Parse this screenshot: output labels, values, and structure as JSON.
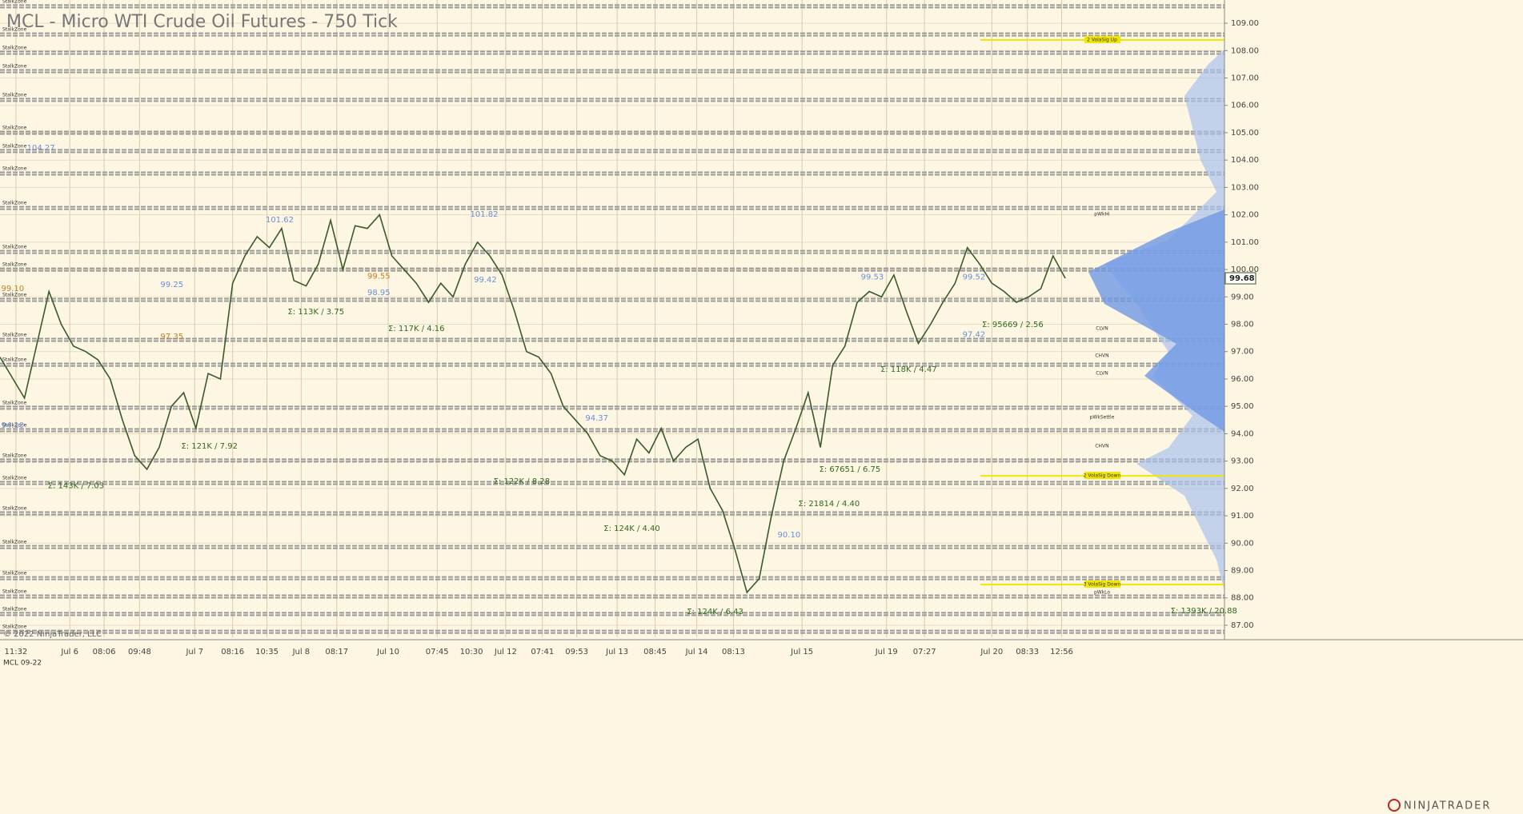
{
  "chart_data": {
    "type": "line",
    "title": "MCL - Micro WTI Crude Oil Futures - 750 Tick",
    "instrument": "MCL 09-22",
    "copyright": "© 2022 NinjaTrader, LLC",
    "brand": "NINJATRADER",
    "color": "#3a5a2a",
    "grid": true,
    "xlim": [
      0,
      100
    ],
    "ylim": [
      86.56,
      109.85
    ],
    "xticks": [
      {
        "value": 1.3,
        "label": "11:32"
      },
      {
        "value": 5.7,
        "label": "Jul 6"
      },
      {
        "value": 8.5,
        "label": "08:06"
      },
      {
        "value": 11.4,
        "label": "09:48"
      },
      {
        "value": 15.9,
        "label": "Jul 7"
      },
      {
        "value": 19,
        "label": "08:16"
      },
      {
        "value": 21.8,
        "label": "10:35"
      },
      {
        "value": 24.6,
        "label": "Jul 8"
      },
      {
        "value": 27.5,
        "label": "08:17"
      },
      {
        "value": 31.7,
        "label": "Jul 10"
      },
      {
        "value": 35.7,
        "label": "07:45"
      },
      {
        "value": 38.5,
        "label": "10:30"
      },
      {
        "value": 41.3,
        "label": "Jul 12"
      },
      {
        "value": 44.3,
        "label": "07:41"
      },
      {
        "value": 47.1,
        "label": "09:53"
      },
      {
        "value": 50.4,
        "label": "Jul 13"
      },
      {
        "value": 53.5,
        "label": "08:45"
      },
      {
        "value": 56.9,
        "label": "Jul 14"
      },
      {
        "value": 59.9,
        "label": "08:13"
      },
      {
        "value": 65.5,
        "label": "Jul 15"
      },
      {
        "value": 72.4,
        "label": "Jul 19"
      },
      {
        "value": 75.5,
        "label": "07:27"
      },
      {
        "value": 81,
        "label": "Jul 20"
      },
      {
        "value": 83.9,
        "label": "08:33"
      },
      {
        "value": 86.7,
        "label": "12:56"
      }
    ],
    "yticks": [
      {
        "value": 87,
        "label": "87.00"
      },
      {
        "value": 88,
        "label": "88.00"
      },
      {
        "value": 89,
        "label": "89.00"
      },
      {
        "value": 90,
        "label": "90.00"
      },
      {
        "value": 91,
        "label": "91.00"
      },
      {
        "value": 92,
        "label": "92.00"
      },
      {
        "value": 93,
        "label": "93.00"
      },
      {
        "value": 94,
        "label": "94.00"
      },
      {
        "value": 95,
        "label": "95.00"
      },
      {
        "value": 96,
        "label": "96.00"
      },
      {
        "value": 97,
        "label": "97.00"
      },
      {
        "value": 98,
        "label": "98.00"
      },
      {
        "value": 99,
        "label": "99.00"
      },
      {
        "value": 100,
        "label": "100.00"
      },
      {
        "value": 101,
        "label": "101.00"
      },
      {
        "value": 102,
        "label": "102.00"
      },
      {
        "value": 103,
        "label": "103.00"
      },
      {
        "value": 104,
        "label": "104.00"
      },
      {
        "value": 105,
        "label": "105.00"
      },
      {
        "value": 106,
        "label": "106.00"
      },
      {
        "value": 107,
        "label": "107.00"
      },
      {
        "value": 108,
        "label": "108.00"
      },
      {
        "value": 109,
        "label": "109.00"
      }
    ],
    "x": [
      0,
      2,
      4,
      5,
      6,
      7,
      8,
      9,
      10,
      11,
      12,
      13,
      14,
      15,
      16,
      17,
      18,
      19,
      20,
      21,
      22,
      23,
      24,
      25,
      26,
      27,
      28,
      29,
      30,
      31,
      32,
      33,
      34,
      35,
      36,
      37,
      38,
      39,
      40,
      41,
      42,
      43,
      44,
      45,
      46,
      47,
      48,
      49,
      50,
      51,
      52,
      53,
      54,
      55,
      56,
      57,
      58,
      59,
      60,
      61,
      62,
      63,
      64,
      65,
      66,
      67,
      68,
      69,
      70,
      71,
      72,
      73,
      74,
      75,
      76,
      77,
      78,
      79,
      80,
      81,
      82,
      83,
      84,
      85,
      86,
      87
    ],
    "values": [
      96.8,
      95.3,
      99.2,
      98.0,
      97.2,
      97.0,
      96.7,
      96.0,
      94.5,
      93.2,
      92.7,
      93.5,
      95.0,
      95.5,
      94.2,
      96.2,
      96.0,
      99.5,
      100.5,
      101.2,
      100.8,
      101.5,
      99.6,
      99.4,
      100.2,
      101.8,
      100.0,
      101.6,
      101.5,
      102.0,
      100.5,
      100.0,
      99.5,
      98.8,
      99.5,
      99.0,
      100.2,
      101.0,
      100.5,
      99.8,
      98.5,
      97.0,
      96.8,
      96.2,
      95.0,
      94.5,
      94.0,
      93.2,
      93.0,
      92.5,
      93.8,
      93.3,
      94.2,
      93.0,
      93.5,
      93.8,
      92.0,
      91.2,
      89.8,
      88.2,
      88.7,
      91.0,
      93.0,
      94.2,
      95.5,
      93.5,
      96.5,
      97.2,
      98.8,
      99.2,
      99.0,
      99.8,
      98.5,
      97.3,
      98.0,
      98.8,
      99.5,
      100.8,
      100.2,
      99.5,
      99.2,
      98.8,
      99.0,
      99.3,
      100.5,
      99.68
    ],
    "last_price": {
      "value": 99.68,
      "label": "99.68"
    },
    "zone_label": "StalkZone",
    "zones": [
      109.62,
      108.59,
      107.92,
      107.25,
      106.2,
      105.0,
      104.33,
      103.51,
      102.25,
      100.64,
      100.0,
      98.89,
      97.43,
      96.52,
      94.95,
      94.13,
      93.02,
      92.2,
      91.09,
      89.86,
      88.72,
      88.05,
      87.41,
      86.76
    ],
    "annotations": [
      {
        "text": "Σ: 143K / 7.03",
        "x": 3.9,
        "y": 92.1,
        "color": "#2e6b1e"
      },
      {
        "text": "Σ: 121K / 7.92",
        "x": 14.8,
        "y": 93.55,
        "color": "#2e6b1e"
      },
      {
        "text": "Σ: 113K / 3.75",
        "x": 23.5,
        "y": 98.45,
        "color": "#2e6b1e"
      },
      {
        "text": "Σ: 117K / 4.16",
        "x": 31.7,
        "y": 97.84,
        "color": "#2e6b1e"
      },
      {
        "text": "Σ: 122K / 8.28",
        "x": 40.3,
        "y": 92.26,
        "color": "#2e6b1e"
      },
      {
        "text": "Σ: 124K / 4.40",
        "x": 49.3,
        "y": 90.54,
        "color": "#2e6b1e"
      },
      {
        "text": "Σ: 124K / 6.43",
        "x": 56.1,
        "y": 87.5,
        "color": "#2e6b1e"
      },
      {
        "text": "Σ: 21814 / 4.40",
        "x": 65.2,
        "y": 91.44,
        "color": "#2e6b1e"
      },
      {
        "text": "Σ: 67651 / 6.75",
        "x": 66.9,
        "y": 92.7,
        "color": "#2e6b1e"
      },
      {
        "text": "Σ: 118K / 4.47",
        "x": 71.9,
        "y": 96.35,
        "color": "#2e6b1e"
      },
      {
        "text": "Σ: 95669 / 2.56",
        "x": 80.2,
        "y": 97.99,
        "color": "#2e6b1e"
      },
      {
        "text": "Σ: 1393K / 20.88",
        "x": 95.6,
        "y": 87.53,
        "color": "#2e6b1e"
      },
      {
        "text": "104.27",
        "x": 2.2,
        "y": 104.44,
        "color": "#6a8fd8"
      },
      {
        "text": "99.10",
        "x": 0.1,
        "y": 99.3,
        "color": "#c08020"
      },
      {
        "text": "94.10",
        "x": 0.1,
        "y": 94.3,
        "color": "#6a8fd8"
      },
      {
        "text": "99.25",
        "x": 13.1,
        "y": 99.45,
        "color": "#6a8fd8"
      },
      {
        "text": "101.62",
        "x": 21.7,
        "y": 101.82,
        "color": "#6a8fd8"
      },
      {
        "text": "99.55",
        "x": 30,
        "y": 99.75,
        "color": "#c08020"
      },
      {
        "text": "98.95",
        "x": 30,
        "y": 99.15,
        "color": "#6a8fd8"
      },
      {
        "text": "101.82",
        "x": 38.4,
        "y": 102.02,
        "color": "#6a8fd8"
      },
      {
        "text": "99.42",
        "x": 38.7,
        "y": 99.62,
        "color": "#6a8fd8"
      },
      {
        "text": "97.35",
        "x": 13.1,
        "y": 97.55,
        "color": "#c08020"
      },
      {
        "text": "94.37",
        "x": 47.8,
        "y": 94.57,
        "color": "#6a8fd8"
      },
      {
        "text": "90.10",
        "x": 63.5,
        "y": 90.3,
        "color": "#6a8fd8"
      },
      {
        "text": "99.53",
        "x": 70.3,
        "y": 99.73,
        "color": "#6a8fd8"
      },
      {
        "text": "99.52",
        "x": 78.6,
        "y": 99.72,
        "color": "#6a8fd8"
      },
      {
        "text": "97.42",
        "x": 78.6,
        "y": 97.62,
        "color": "#6a8fd8"
      }
    ],
    "levels": [
      {
        "text": "2 VolaSig Up",
        "y": 108.39
      },
      {
        "text": "2 VolaSig Down",
        "y": 92.46
      },
      {
        "text": "3 VolaSig Down",
        "y": 88.49
      }
    ],
    "markers": [
      {
        "text": "pWkHi",
        "y": 102.02
      },
      {
        "text": "CLVN",
        "y": 97.84
      },
      {
        "text": "CHVN",
        "y": 96.85
      },
      {
        "text": "CLVN",
        "y": 96.2
      },
      {
        "text": "pWkSettle",
        "y": 94.6
      },
      {
        "text": "CHVN",
        "y": 93.55
      },
      {
        "text": "pWkLo",
        "y": 88.2
      }
    ]
  }
}
